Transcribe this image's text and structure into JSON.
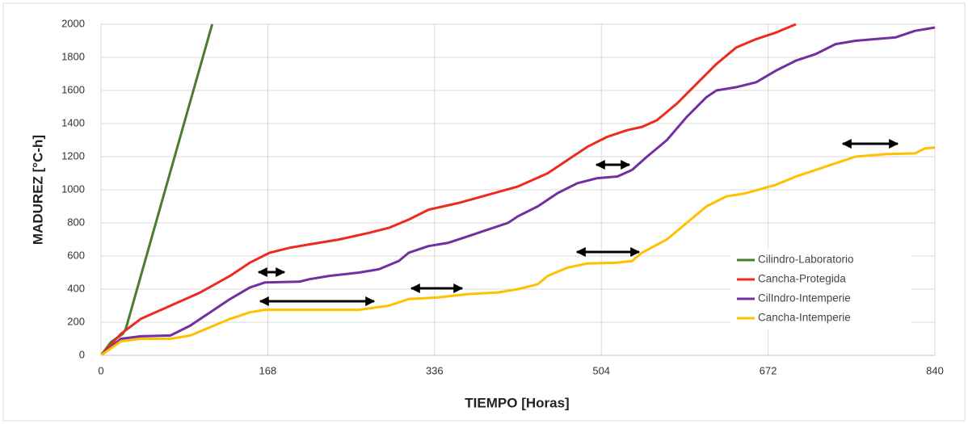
{
  "chart_data": {
    "type": "line",
    "xlabel": "TIEMPO [Horas]",
    "ylabel": "MADUREZ [°C-h]",
    "xlim": [
      0,
      840
    ],
    "xticks": [
      0,
      168,
      336,
      504,
      672,
      840
    ],
    "ylim": [
      0,
      2000
    ],
    "yticks": [
      0,
      200,
      400,
      600,
      800,
      1000,
      1200,
      1400,
      1600,
      1800,
      2000
    ],
    "grid": true,
    "legend": "lower right",
    "series": [
      {
        "name": "Cilindro-Laboratorio",
        "color": "#4a7d32",
        "x": [
          0,
          10,
          22,
          25,
          112
        ],
        "values": [
          0,
          80,
          130,
          160,
          2000
        ]
      },
      {
        "name": "Cancha-Protegida",
        "color": "#ee2a1e",
        "x": [
          0,
          20,
          40,
          70,
          100,
          130,
          150,
          170,
          190,
          210,
          240,
          270,
          290,
          310,
          330,
          360,
          390,
          420,
          450,
          470,
          490,
          510,
          530,
          545,
          560,
          580,
          600,
          620,
          640,
          660,
          680,
          700
        ],
        "values": [
          0,
          130,
          220,
          300,
          380,
          480,
          560,
          620,
          650,
          670,
          700,
          740,
          770,
          820,
          880,
          920,
          970,
          1020,
          1100,
          1180,
          1260,
          1320,
          1360,
          1380,
          1420,
          1520,
          1640,
          1760,
          1860,
          1910,
          1950,
          2000
        ]
      },
      {
        "name": "CilIndro-Intemperie",
        "color": "#7030a0",
        "x": [
          0,
          20,
          40,
          70,
          90,
          110,
          130,
          150,
          165,
          200,
          210,
          230,
          260,
          280,
          300,
          310,
          330,
          350,
          370,
          390,
          410,
          420,
          440,
          460,
          480,
          500,
          520,
          535,
          550,
          570,
          590,
          610,
          620,
          640,
          660,
          680,
          700,
          720,
          740,
          760,
          780,
          800,
          820,
          840
        ],
        "values": [
          0,
          100,
          115,
          120,
          180,
          260,
          340,
          410,
          440,
          445,
          460,
          480,
          500,
          520,
          570,
          620,
          660,
          680,
          720,
          760,
          800,
          840,
          900,
          980,
          1040,
          1070,
          1080,
          1120,
          1200,
          1300,
          1440,
          1560,
          1600,
          1620,
          1650,
          1720,
          1780,
          1820,
          1880,
          1900,
          1910,
          1920,
          1960,
          1980
        ]
      },
      {
        "name": "Cancha-Intemperie",
        "color": "#ffc000",
        "x": [
          0,
          20,
          40,
          70,
          90,
          110,
          130,
          150,
          165,
          260,
          290,
          310,
          340,
          370,
          400,
          420,
          440,
          450,
          470,
          490,
          520,
          535,
          545,
          570,
          590,
          610,
          630,
          650,
          680,
          700,
          720,
          740,
          760,
          790,
          820,
          830,
          840
        ],
        "values": [
          0,
          85,
          100,
          100,
          120,
          170,
          220,
          260,
          275,
          275,
          300,
          340,
          350,
          370,
          380,
          400,
          430,
          480,
          530,
          555,
          560,
          570,
          620,
          700,
          800,
          900,
          960,
          980,
          1030,
          1080,
          1120,
          1160,
          1200,
          1215,
          1220,
          1250,
          1255
        ]
      }
    ]
  }
}
